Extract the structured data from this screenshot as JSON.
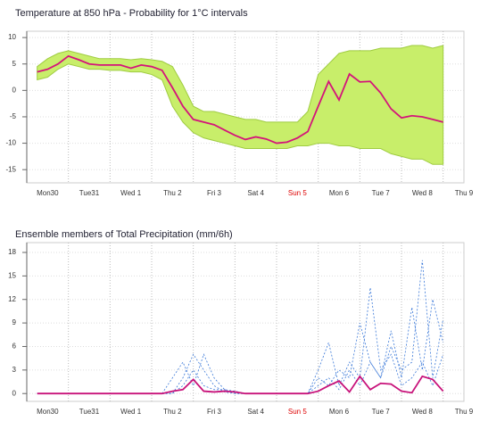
{
  "chart_data": [
    {
      "type": "line",
      "title": "Temperature at 850 hPa - Probability for 1°C intervals",
      "categories": [
        null,
        null,
        "Mon30",
        null,
        null,
        null,
        "Tue31",
        null,
        null,
        null,
        "Wed 1",
        null,
        null,
        null,
        "Thu 2",
        null,
        null,
        null,
        "Fri 3",
        null,
        null,
        null,
        "Sat 4",
        null,
        null,
        null,
        "Sun 5",
        null,
        null,
        null,
        "Mon 6",
        null,
        null,
        null,
        "Tue 7",
        null,
        null,
        null,
        "Wed 8",
        null,
        null,
        null,
        "Thu 9"
      ],
      "highlight": {
        "index": 26,
        "color": "#dd0000"
      },
      "ylim": [
        -17.5,
        11.2
      ],
      "yticks": [
        10,
        5,
        0,
        -5,
        -10,
        -15
      ],
      "grid": true,
      "range": {
        "color": "#c8ee6a",
        "low": [
          null,
          2,
          2.5,
          4,
          5,
          4.5,
          4,
          4,
          3.8,
          3.8,
          3.5,
          3.5,
          3,
          2,
          -3,
          -6,
          -8,
          -9,
          -9.5,
          -10,
          -10.5,
          -11,
          -11,
          -11,
          -11,
          -11,
          -10.5,
          -10.5,
          -10,
          -10,
          -10.5,
          -10.5,
          -11,
          -11,
          -11,
          -12,
          -12.5,
          -13,
          -13,
          -14,
          -14,
          null,
          null
        ],
        "high": [
          null,
          4.5,
          6,
          7,
          7.5,
          7,
          6.5,
          6,
          6,
          6,
          5.8,
          6,
          5.8,
          5.5,
          4.5,
          1,
          -3,
          -4,
          -4,
          -4.5,
          -5,
          -5.5,
          -5.5,
          -6,
          -6,
          -6,
          -6,
          -4,
          3,
          5,
          7,
          7.5,
          7.5,
          7.5,
          8,
          8,
          8,
          8.5,
          8.5,
          8,
          8.5,
          null,
          null
        ]
      },
      "series": [
        {
          "color": "#d4147a",
          "values": [
            null,
            3.5,
            4,
            5,
            6.5,
            5.8,
            5,
            4.8,
            4.8,
            4.8,
            4.2,
            4.8,
            4.5,
            3.8,
            0.5,
            -3,
            -5.5,
            -6,
            -6.5,
            -7.5,
            -8.5,
            -9.3,
            -8.8,
            -9.2,
            -10,
            -9.8,
            -9,
            -7.8,
            -3,
            1.7,
            -1.8,
            3.1,
            1.6,
            1.7,
            -0.5,
            -3.5,
            -5.2,
            -4.8,
            -5,
            -5.5,
            -6,
            null,
            null
          ]
        }
      ]
    },
    {
      "type": "line",
      "title": "Ensemble members of Total Precipitation (mm/6h)",
      "categories": [
        null,
        null,
        "Mon30",
        null,
        null,
        null,
        "Tue31",
        null,
        null,
        null,
        "Wed 1",
        null,
        null,
        null,
        "Thu 2",
        null,
        null,
        null,
        "Fri 3",
        null,
        null,
        null,
        "Sat 4",
        null,
        null,
        null,
        "Sun 5",
        null,
        null,
        null,
        "Mon 6",
        null,
        null,
        null,
        "Tue 7",
        null,
        null,
        null,
        "Wed 8",
        null,
        null,
        null,
        "Thu 9"
      ],
      "highlight": {
        "index": 26,
        "color": "#dd0000"
      },
      "ylim": [
        -1,
        19.25
      ],
      "yticks": [
        0,
        3,
        6,
        9,
        12,
        15,
        18
      ],
      "grid": true,
      "series": [
        {
          "color": "#3a78d8",
          "dash": true,
          "values": [
            null,
            0,
            0,
            0,
            0,
            0,
            0,
            0,
            0,
            0,
            0,
            0,
            0,
            0,
            0,
            1,
            3,
            1,
            0.5,
            0.5,
            0,
            0,
            0,
            0,
            0,
            0,
            0,
            0,
            1,
            2,
            0.5,
            3,
            1,
            4,
            2,
            6,
            3,
            4,
            17,
            2,
            9.5,
            null,
            null
          ]
        },
        {
          "color": "#3a78d8",
          "dash": true,
          "values": [
            null,
            0,
            0,
            0,
            0,
            0,
            0,
            0,
            0,
            0,
            0,
            0,
            0,
            0,
            2,
            4,
            1,
            5,
            2,
            0.5,
            0.3,
            0,
            0,
            0,
            0,
            0,
            0,
            0,
            3,
            6.5,
            1,
            4,
            2,
            13.5,
            3,
            5,
            1,
            2,
            4,
            1,
            5,
            null,
            null
          ]
        },
        {
          "color": "#3a78d8",
          "dash": true,
          "values": [
            null,
            0,
            0,
            0,
            0,
            0,
            0,
            0,
            0,
            0,
            0,
            0,
            0,
            0,
            0,
            2,
            5,
            3,
            1,
            0.2,
            0,
            0,
            0,
            0,
            0,
            0,
            0,
            0,
            2,
            1,
            3,
            2,
            9,
            4,
            2,
            8,
            2,
            11,
            3,
            12,
            6.5,
            null,
            null
          ]
        },
        {
          "color": "#c8127a",
          "values": [
            null,
            0,
            0,
            0,
            0,
            0,
            0,
            0,
            0,
            0,
            0,
            0,
            0,
            0,
            0.3,
            0.5,
            1.8,
            0.3,
            0.2,
            0.3,
            0.2,
            0,
            0,
            0,
            0,
            0,
            0,
            0,
            0.3,
            1,
            1.6,
            0.2,
            2.2,
            0.5,
            1.3,
            1.2,
            0.3,
            0.1,
            2.2,
            1.8,
            0.3,
            null,
            null
          ]
        }
      ]
    }
  ]
}
